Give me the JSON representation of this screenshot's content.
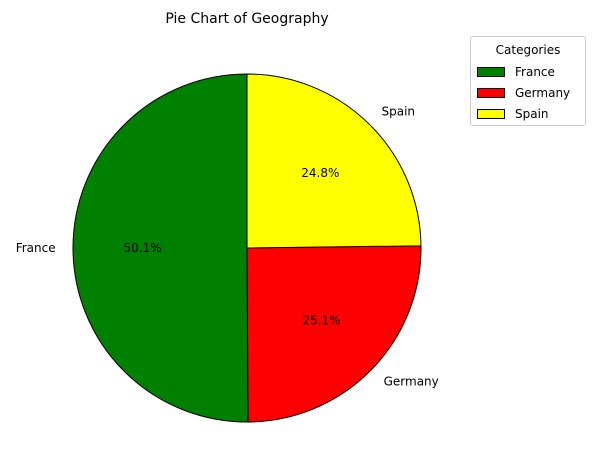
{
  "chart_data": {
    "type": "pie",
    "title": "Pie Chart of Geography",
    "categories": [
      "France",
      "Germany",
      "Spain"
    ],
    "values": [
      50.1,
      25.1,
      24.8
    ],
    "percent_labels": [
      "50.1%",
      "25.1%",
      "24.8%"
    ],
    "colors": [
      "#008000",
      "#ff0000",
      "#ffff00"
    ],
    "edge_color": "#000000",
    "legend": {
      "title": "Categories",
      "placement": "upper-right-outside",
      "entries": [
        "France",
        "Germany",
        "Spain"
      ]
    }
  }
}
